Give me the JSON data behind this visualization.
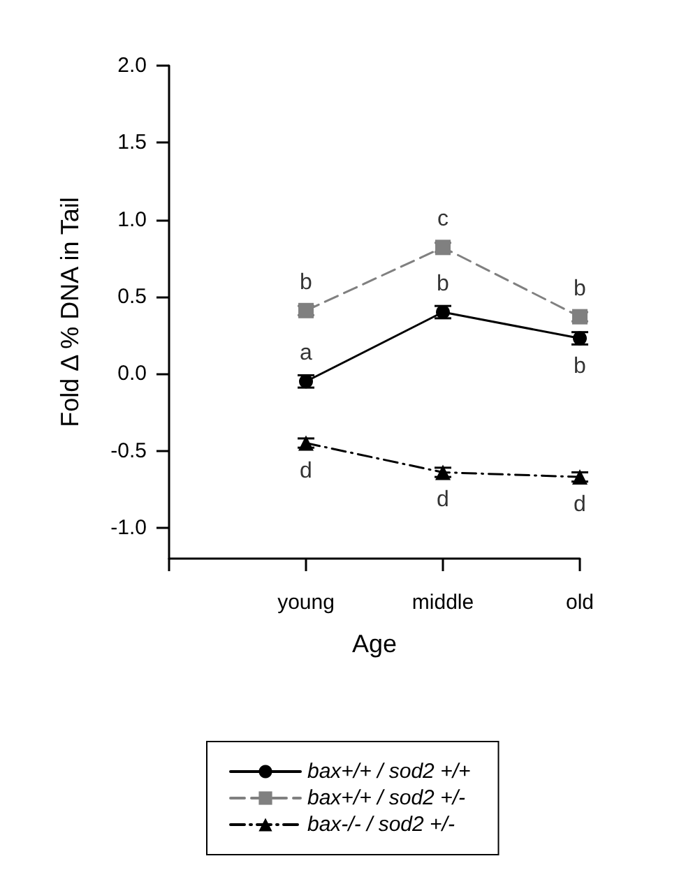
{
  "chart_data": {
    "type": "line",
    "xlabel": "Age",
    "ylabel": "Fold Δ % DNA in Tail",
    "categories": [
      null,
      "young",
      "middle",
      "old"
    ],
    "series": [
      {
        "name": "bax+/+ / sod2 +/+",
        "color": "#000000",
        "marker": "circle",
        "line_style": "solid",
        "values": [
          null,
          -0.05,
          0.4,
          0.23
        ],
        "errors": [
          null,
          0.04,
          0.04,
          0.04
        ]
      },
      {
        "name": "bax+/+ / sod2 +/-",
        "color": "#808080",
        "marker": "square",
        "line_style": "dashed",
        "values": [
          null,
          0.41,
          0.82,
          0.37
        ],
        "errors": [
          null,
          0.03,
          0.03,
          0.03
        ]
      },
      {
        "name": "bax-/- / sod2 +/-",
        "color": "#000000",
        "marker": "triangle",
        "line_style": "dashdot",
        "values": [
          null,
          -0.45,
          -0.64,
          -0.67
        ],
        "errors": [
          null,
          0.03,
          0.03,
          0.03
        ]
      }
    ],
    "annotations": [
      {
        "text": "b",
        "x": "young",
        "y": 0.41
      },
      {
        "text": "a",
        "x": "young",
        "y": -0.05
      },
      {
        "text": "d",
        "x": "young",
        "y": -0.45
      },
      {
        "text": "c",
        "x": "middle",
        "y": 0.82
      },
      {
        "text": "b",
        "x": "middle",
        "y": 0.4
      },
      {
        "text": "d",
        "x": "middle",
        "y": -0.64
      },
      {
        "text": "b",
        "x": "old",
        "y": 0.37
      },
      {
        "text": "b",
        "x": "old",
        "y": 0.23
      },
      {
        "text": "d",
        "x": "old",
        "y": -0.67
      }
    ],
    "ylim": [
      -1.2,
      2.0
    ],
    "yticks": [
      {
        "value": -1,
        "label": "-1.0"
      },
      -0.5,
      {
        "value": 0,
        "label": "0.0"
      },
      0.5,
      {
        "value": 1,
        "label": "1.0"
      },
      1.5,
      {
        "value": 2,
        "label": "2.0"
      }
    ],
    "grid": false,
    "legend": "bottom"
  }
}
